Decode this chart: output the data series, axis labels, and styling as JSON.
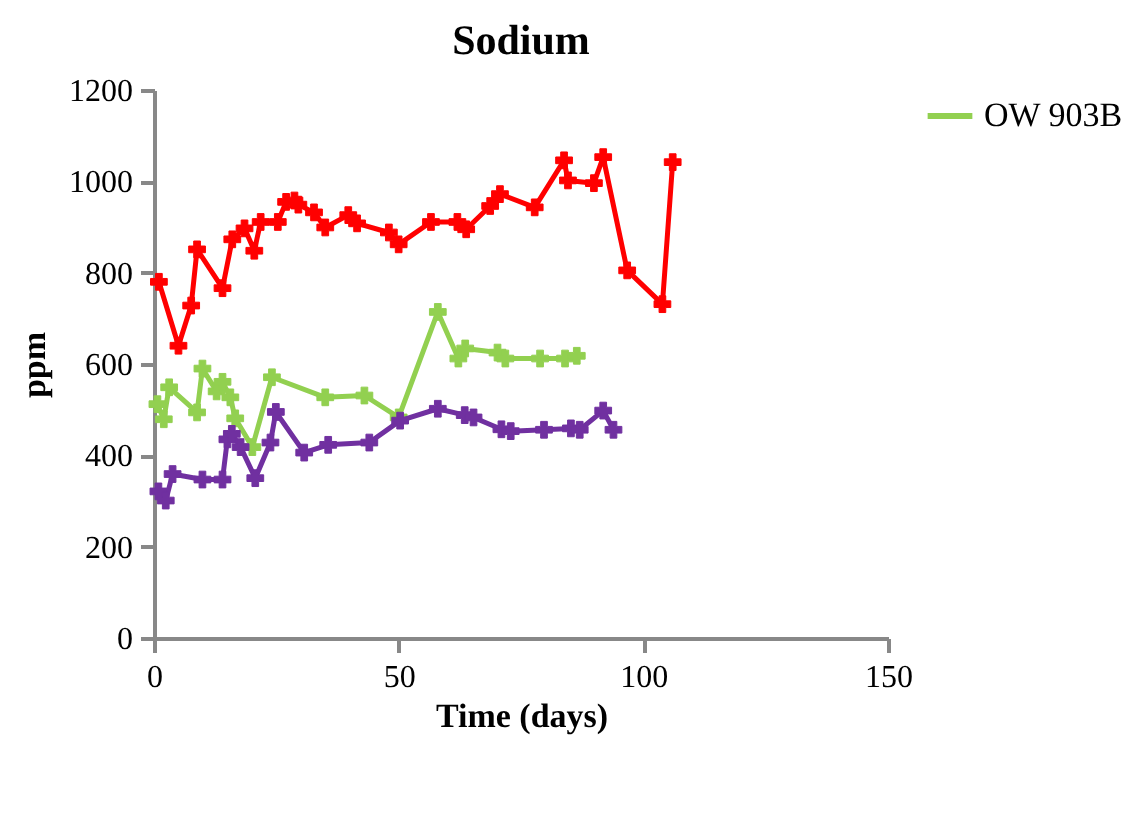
{
  "chart_data": {
    "type": "line",
    "title": "Sodium",
    "xlabel": "Time (days)",
    "ylabel": "ppm",
    "xlim": [
      0,
      150
    ],
    "xticks": [
      0,
      50,
      100,
      150
    ],
    "ylim": [
      0,
      1200
    ],
    "yticks": [
      0,
      200,
      400,
      600,
      800,
      1000,
      1200
    ],
    "grid": false,
    "legend": "right",
    "marker": "cross",
    "line_style": "solid",
    "series": [
      {
        "color": "#ff0000",
        "x": [
          1,
          5,
          7.6,
          8.8,
          14,
          16,
          18.5,
          20.5,
          21.8,
          25.3,
          27,
          28.7,
          29.5,
          32.7,
          35,
          39.7,
          41.5,
          48,
          50,
          56.6,
          62,
          63.8,
          68.7,
          70.7,
          77.8,
          83.8,
          84.6,
          89.9,
          91.8,
          96.7,
          103.9,
          106
        ],
        "values": [
          780,
          640,
          728,
          851,
          766,
          873,
          897,
          848,
          911,
          911,
          955,
          958,
          949,
          932,
          899,
          926,
          908,
          888,
          862,
          911,
          911,
          895,
          946,
          972,
          943,
          1046,
          1002,
          996,
          1053,
          805,
          731,
          1042
        ]
      },
      {
        "name": "OW 903B",
        "color": "#92d050",
        "x": [
          0.7,
          2,
          3.1,
          8.8,
          9.9,
          12.8,
          14,
          15.6,
          16.6,
          20.1,
          24.1,
          35,
          43,
          50,
          58,
          62.2,
          63.6,
          70.2,
          71.8,
          78.9,
          84,
          86.4
        ],
        "values": [
          512,
          479,
          549,
          494,
          590,
          540,
          561,
          527,
          481,
          418,
          571,
          527,
          531,
          483,
          714,
          612,
          634,
          625,
          612,
          612,
          612,
          618
        ]
      },
      {
        "color": "#7030a0",
        "x": [
          0.9,
          2.4,
          3.8,
          9.9,
          14,
          15,
          15.9,
          17.7,
          20.7,
          23.8,
          24.9,
          30.7,
          35.6,
          44,
          50.3,
          58,
          63.5,
          65.3,
          71,
          72.9,
          79.7,
          85.2,
          87,
          91.8,
          93.9
        ],
        "values": [
          321,
          301,
          359,
          347,
          347,
          435,
          447,
          418,
          350,
          428,
          495,
          406,
          423,
          428,
          476,
          502,
          488,
          483,
          457,
          453,
          456,
          459,
          456,
          498,
          456
        ]
      }
    ]
  }
}
